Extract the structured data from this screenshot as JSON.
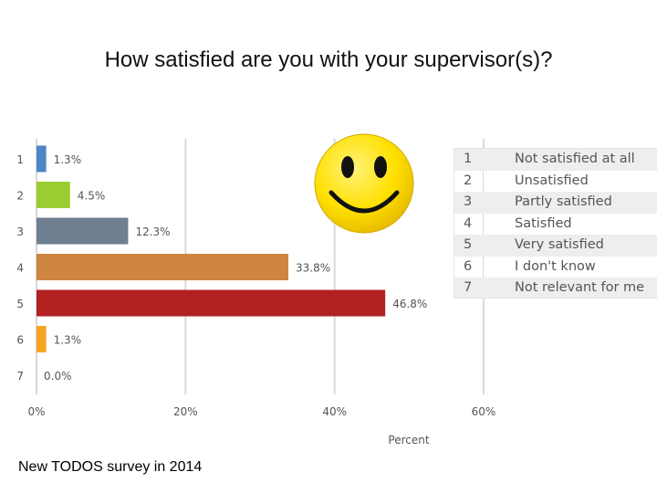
{
  "title": "How satisfied are you with your supervisor(s)?",
  "footer": "New TODOS survey in 2014",
  "chart_data": {
    "type": "bar",
    "orientation": "horizontal",
    "categories": [
      "1",
      "2",
      "3",
      "4",
      "5",
      "6",
      "7"
    ],
    "values": [
      1.3,
      4.5,
      12.3,
      33.8,
      46.8,
      1.3,
      0.0
    ],
    "value_labels": [
      "1.3%",
      "4.5%",
      "12.3%",
      "33.8%",
      "46.8%",
      "1.3%",
      "0.0%"
    ],
    "colors": [
      "#4e86c5",
      "#9acd32",
      "#6e7f8f",
      "#cd853f",
      "#b22222",
      "#f5a623",
      "#aaaaaa"
    ],
    "xlabel": "Percent",
    "ylabel": "",
    "xlim": [
      0,
      60
    ],
    "xticks": [
      "0%",
      "20%",
      "40%",
      "60%"
    ],
    "xtick_values": [
      0,
      20,
      40,
      60
    ],
    "grid": true
  },
  "legend": {
    "items": [
      {
        "num": "1",
        "label": "Not satisfied at all"
      },
      {
        "num": "2",
        "label": "Unsatisfied"
      },
      {
        "num": "3",
        "label": "Partly satisfied"
      },
      {
        "num": "4",
        "label": "Satisfied"
      },
      {
        "num": "5",
        "label": "Very satisfied"
      },
      {
        "num": "6",
        "label": "I don't know"
      },
      {
        "num": "7",
        "label": "Not relevant for me"
      }
    ]
  },
  "image": {
    "icon": "smiley-face-icon",
    "color": "#ffd700"
  }
}
